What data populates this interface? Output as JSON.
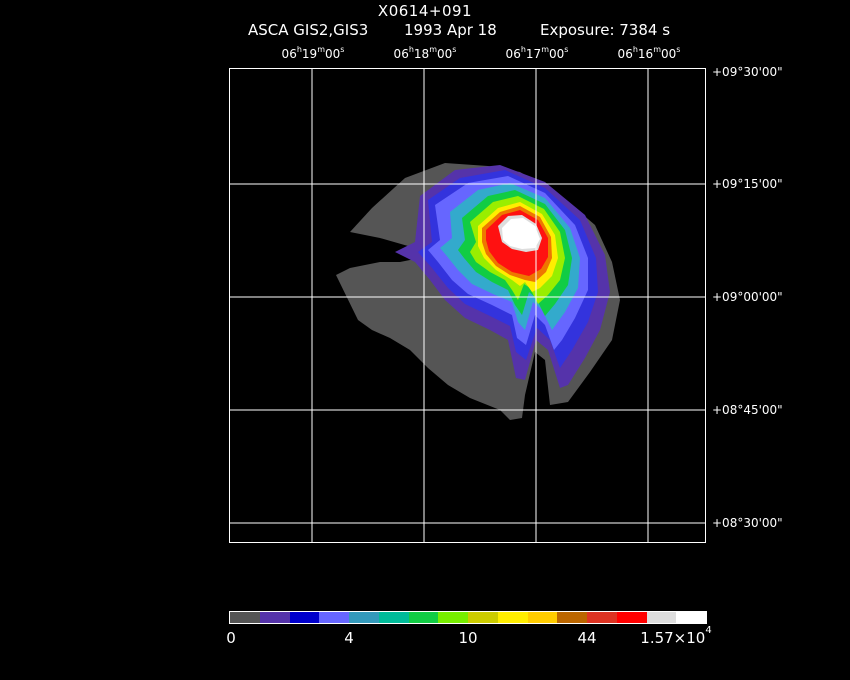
{
  "header": {
    "source": "X0614+091",
    "instrument": "ASCA GIS2,GIS3",
    "date": "1993 Apr 18",
    "exposure": "Exposure: 7384 s"
  },
  "ra_labels": [
    {
      "h": "06",
      "m": "19",
      "s": "00"
    },
    {
      "h": "06",
      "m": "18",
      "s": "00"
    },
    {
      "h": "06",
      "m": "17",
      "s": "00"
    },
    {
      "h": "06",
      "m": "16",
      "s": "00"
    }
  ],
  "dec_labels": [
    "+09°30'00\"",
    "+09°15'00\"",
    "+09°00'00\"",
    "+08°45'00\"",
    "+08°30'00\""
  ],
  "colorbar": {
    "colors": [
      "#555555",
      "#5533aa",
      "#0000cc",
      "#6666ff",
      "#3399bb",
      "#00bb99",
      "#11cc44",
      "#77ee00",
      "#cccc00",
      "#ffee00",
      "#ffcc00",
      "#bb6600",
      "#dd3322",
      "#ff0000",
      "#dddddd",
      "#ffffff"
    ],
    "labels": [
      "0",
      "4",
      "10",
      "44",
      "1.57×10"
    ],
    "last_exp": "4"
  }
}
